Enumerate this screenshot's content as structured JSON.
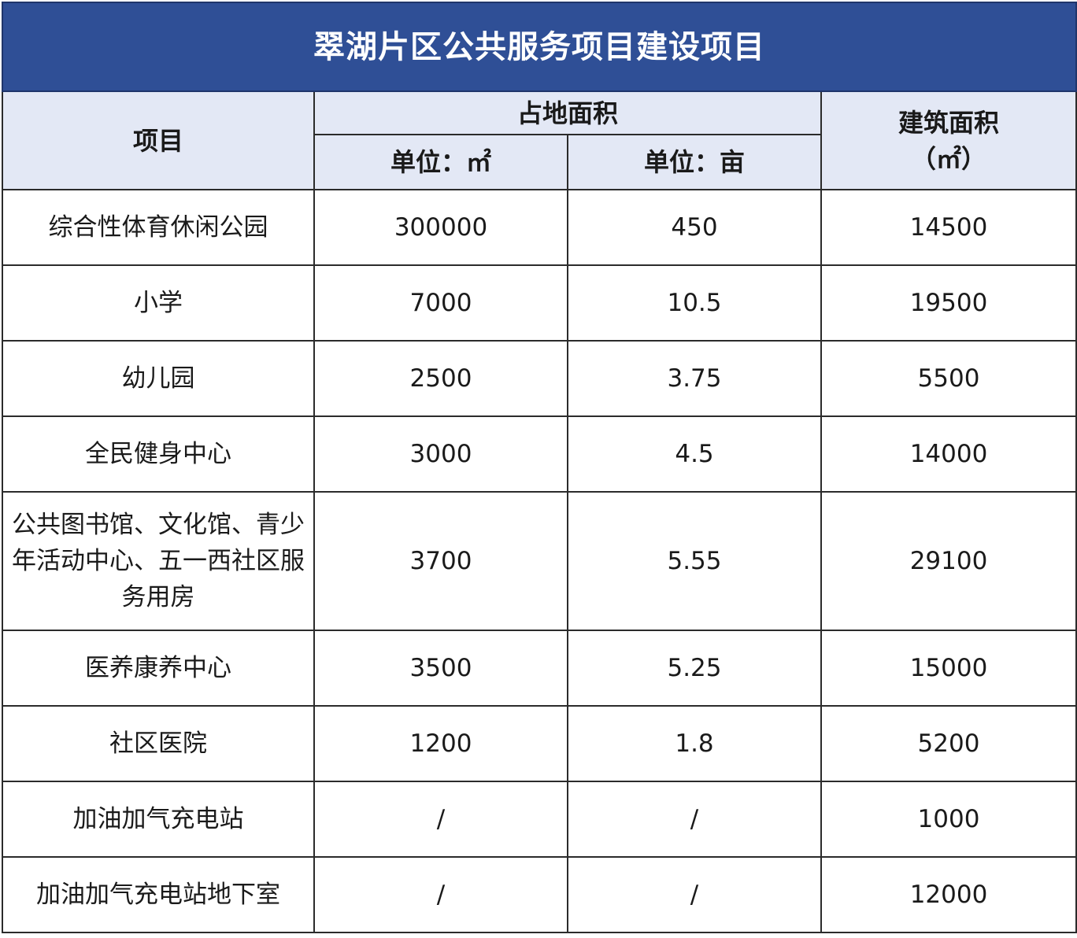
{
  "title": "翠湖片区公共服务项目建设项目",
  "headers": {
    "project": "项目",
    "land_area": "占地面积",
    "unit_sqm": "单位：㎡",
    "unit_mu": "单位：亩",
    "building_area_line1": "建筑面积",
    "building_area_line2": "（㎡）"
  },
  "rows": [
    {
      "name": "综合性体育休闲公园",
      "sqm": "300000",
      "mu": "450",
      "building": "14500"
    },
    {
      "name": "小学",
      "sqm": "7000",
      "mu": "10.5",
      "building": "19500"
    },
    {
      "name": "幼儿园",
      "sqm": "2500",
      "mu": "3.75",
      "building": "5500"
    },
    {
      "name": "全民健身中心",
      "sqm": "3000",
      "mu": "4.5",
      "building": "14000"
    },
    {
      "name": "公共图书馆、文化馆、青少年活动中心、五一西社区服务用房",
      "sqm": "3700",
      "mu": "5.55",
      "building": "29100"
    },
    {
      "name": "医养康养中心",
      "sqm": "3500",
      "mu": "5.25",
      "building": "15000"
    },
    {
      "name": "社区医院",
      "sqm": "1200",
      "mu": "1.8",
      "building": "5200"
    },
    {
      "name": "加油加气充电站",
      "sqm": "/",
      "mu": "/",
      "building": "1000"
    },
    {
      "name": "加油加气充电站地下室",
      "sqm": "/",
      "mu": "/",
      "building": "12000"
    }
  ]
}
